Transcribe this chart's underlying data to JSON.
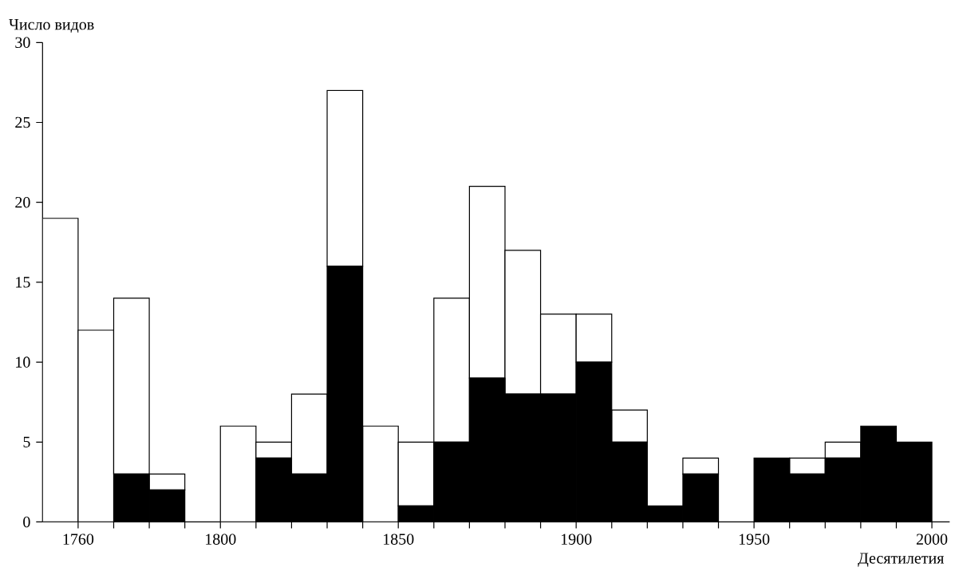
{
  "chart_data": {
    "type": "bar",
    "xlabel": "Десятилетия",
    "ylabel": "Число видов",
    "x": [
      1755,
      1765,
      1775,
      1785,
      1795,
      1805,
      1815,
      1825,
      1835,
      1845,
      1855,
      1865,
      1875,
      1885,
      1895,
      1905,
      1915,
      1925,
      1935,
      1945,
      1955,
      1965,
      1975,
      1985,
      1995
    ],
    "stacked": true,
    "series": [
      {
        "color": "#000000",
        "values": [
          0,
          0,
          3,
          2,
          0,
          0,
          4,
          3,
          16,
          0,
          1,
          5,
          9,
          8,
          8,
          10,
          5,
          1,
          3,
          0,
          4,
          3,
          4,
          6,
          5
        ]
      },
      {
        "color": "#ffffff",
        "values": [
          19,
          12,
          11,
          1,
          0,
          6,
          1,
          5,
          11,
          6,
          4,
          9,
          12,
          9,
          5,
          3,
          2,
          0,
          1,
          0,
          0,
          1,
          1,
          0,
          0
        ]
      }
    ],
    "xlim": [
      1750,
      2005
    ],
    "ylim": [
      0,
      30
    ],
    "xticks": [
      1760,
      {
        "value": 1770,
        "label": null
      },
      {
        "value": 1780,
        "label": null
      },
      {
        "value": 1790,
        "label": null
      },
      1800,
      {
        "value": 1810,
        "label": null
      },
      {
        "value": 1820,
        "label": null
      },
      {
        "value": 1830,
        "label": null
      },
      {
        "value": 1840,
        "label": null
      },
      1850,
      {
        "value": 1860,
        "label": null
      },
      {
        "value": 1870,
        "label": null
      },
      {
        "value": 1880,
        "label": null
      },
      {
        "value": 1890,
        "label": null
      },
      1900,
      {
        "value": 1910,
        "label": null
      },
      {
        "value": 1920,
        "label": null
      },
      {
        "value": 1930,
        "label": null
      },
      {
        "value": 1940,
        "label": null
      },
      1950,
      {
        "value": 1960,
        "label": null
      },
      {
        "value": 1970,
        "label": null
      },
      {
        "value": 1980,
        "label": null
      },
      {
        "value": 1990,
        "label": null
      },
      2000
    ],
    "yticks": [
      0,
      5,
      10,
      15,
      20,
      25,
      30
    ],
    "grid": false
  }
}
